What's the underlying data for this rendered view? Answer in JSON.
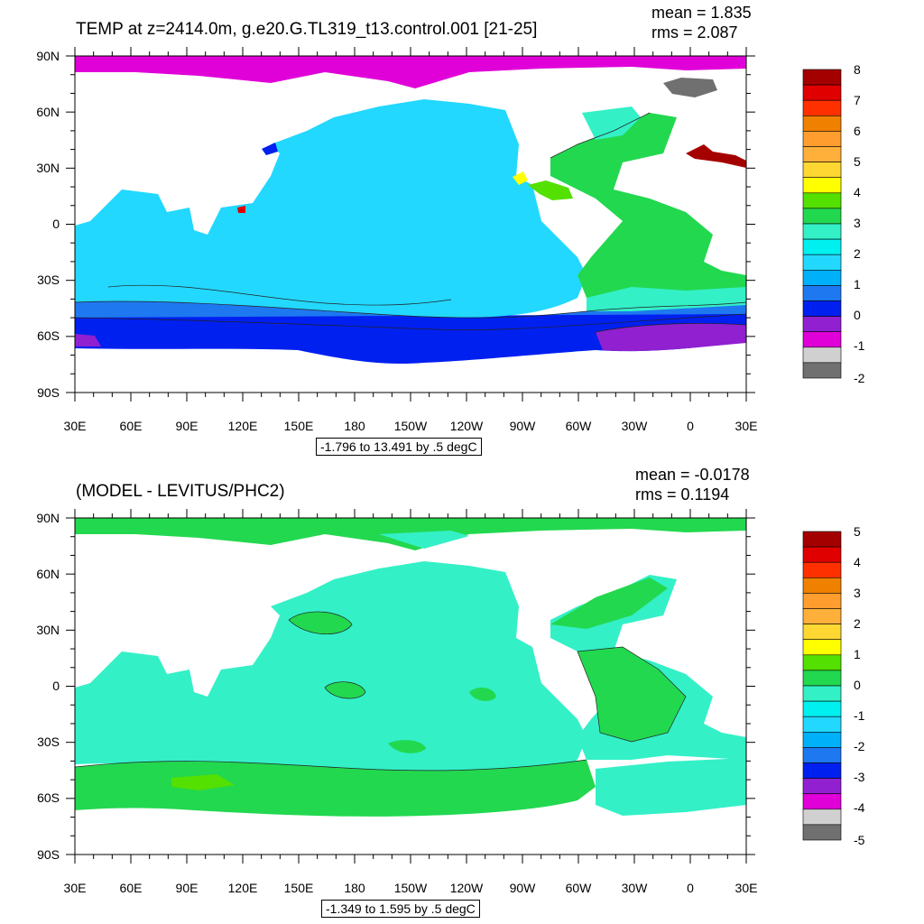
{
  "chart_data": [
    {
      "type": "heatmap",
      "title": "TEMP at z=2414.0m, g.e20.G.TL319_t13.control.001 [21-25]",
      "mean_label": "mean = 1.835",
      "rms_label": "rms = 2.087",
      "range_label": "-1.796 to 13.491 by .5 degC",
      "x_ticks": [
        "30E",
        "60E",
        "90E",
        "120E",
        "150E",
        "180",
        "150W",
        "120W",
        "90W",
        "60W",
        "30W",
        "0",
        "30E"
      ],
      "y_ticks": [
        "90N",
        "60N",
        "30N",
        "0",
        "30S",
        "60S",
        "90S"
      ],
      "colorbar_labels": [
        "8",
        "7",
        "6",
        "5",
        "4",
        "3",
        "2",
        "1",
        "0",
        "-1",
        "-2"
      ],
      "colors": [
        "#a50000",
        "#e00000",
        "#ff3000",
        "#f08000",
        "#ff9e2f",
        "#ffb03a",
        "#ffd733",
        "#ffff00",
        "#54e000",
        "#22d84f",
        "#33f0c7",
        "#00f0f0",
        "#22d8ff",
        "#00b0f8",
        "#1e78f0",
        "#0020f0",
        "#9020d0",
        "#e000d8",
        "#d0d0d0",
        "#707070"
      ]
    },
    {
      "type": "heatmap",
      "title": "(MODEL - LEVITUS/PHC2)",
      "mean_label": "mean = -0.0178",
      "rms_label": "rms = 0.1194",
      "range_label": "-1.349 to 1.595 by .5 degC",
      "x_ticks": [
        "30E",
        "60E",
        "90E",
        "120E",
        "150E",
        "180",
        "150W",
        "120W",
        "90W",
        "60W",
        "30W",
        "0",
        "30E"
      ],
      "y_ticks": [
        "90N",
        "60N",
        "30N",
        "0",
        "30S",
        "60S",
        "90S"
      ],
      "colorbar_labels": [
        "5",
        "4",
        "3",
        "2",
        "1",
        "0",
        "-1",
        "-2",
        "-3",
        "-4",
        "-5"
      ],
      "colors": [
        "#a50000",
        "#e00000",
        "#ff3000",
        "#f08000",
        "#ff9e2f",
        "#ffb03a",
        "#ffd733",
        "#ffff00",
        "#54e000",
        "#22d84f",
        "#33f0c7",
        "#00f0f0",
        "#22d8ff",
        "#00b0f8",
        "#1e78f0",
        "#0020f0",
        "#9020d0",
        "#e000d8",
        "#d0d0d0",
        "#707070"
      ]
    }
  ]
}
